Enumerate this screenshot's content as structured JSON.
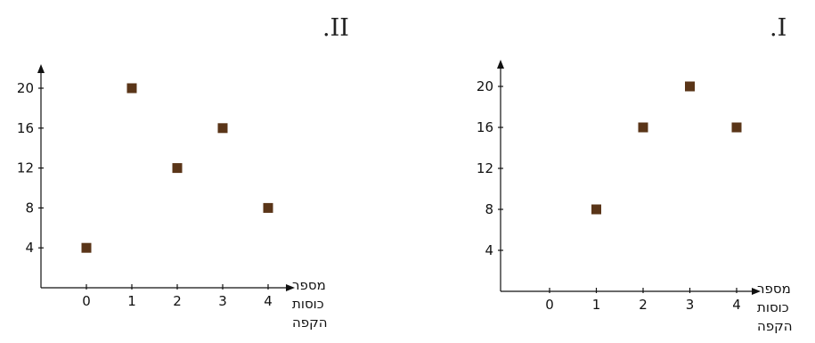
{
  "chart_data": [
    {
      "type": "scatter",
      "title": ".II",
      "xlabel": [
        "מספר",
        "כוסות",
        "הקפה"
      ],
      "ylabel": "",
      "x_ticks": [
        "0",
        "1",
        "2",
        "3",
        "4"
      ],
      "y_ticks": [
        "4",
        "8",
        "12",
        "16",
        "20"
      ],
      "xlim": [
        -1,
        4.6
      ],
      "ylim": [
        0,
        22.5
      ],
      "grid": false,
      "points": [
        {
          "x": 0,
          "y": 4
        },
        {
          "x": 1,
          "y": 20
        },
        {
          "x": 2,
          "y": 12
        },
        {
          "x": 3,
          "y": 16
        },
        {
          "x": 4,
          "y": 8
        }
      ],
      "marker_color": "#5a3518"
    },
    {
      "type": "scatter",
      "title": ".I",
      "xlabel": [
        "מספר",
        "כוסות",
        "הקפה"
      ],
      "ylabel": "",
      "x_ticks": [
        "0",
        "1",
        "2",
        "3",
        "4"
      ],
      "y_ticks": [
        "4",
        "8",
        "12",
        "16",
        "20"
      ],
      "xlim": [
        -1,
        4.6
      ],
      "ylim": [
        0,
        22.5
      ],
      "grid": false,
      "points": [
        {
          "x": 1,
          "y": 8
        },
        {
          "x": 2,
          "y": 16
        },
        {
          "x": 3,
          "y": 20
        },
        {
          "x": 4,
          "y": 16
        }
      ],
      "marker_color": "#5a3518"
    }
  ]
}
